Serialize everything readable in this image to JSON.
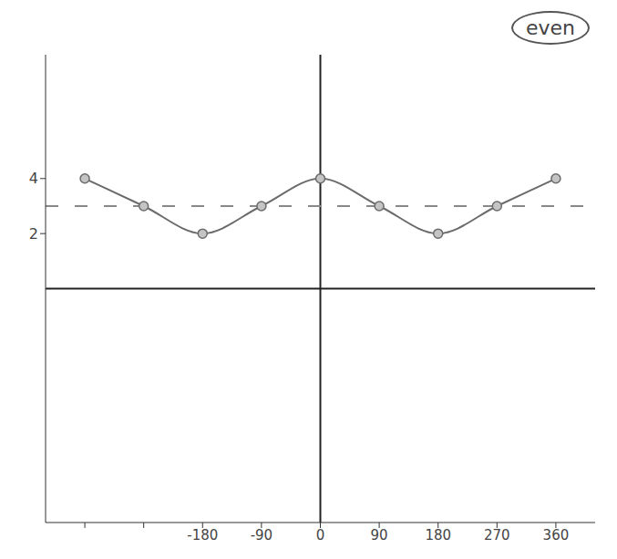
{
  "chart_data": {
    "type": "line",
    "annotation": "even",
    "x": [
      -360,
      -270,
      -180,
      -90,
      0,
      90,
      180,
      270,
      360
    ],
    "values": [
      4,
      3,
      2,
      3,
      4,
      3,
      2,
      3,
      4
    ],
    "color": "#6b6b6b",
    "marker": "circle",
    "line_style": "solid",
    "midline": 3,
    "xlim": [
      -420,
      420
    ],
    "ylim": [
      -8.5,
      8.5
    ],
    "xticks": [
      {
        "value": -360,
        "label": null
      },
      {
        "value": -270,
        "label": null
      },
      -180,
      -90,
      0,
      90,
      180,
      270,
      360
    ],
    "yticks": [
      2,
      4
    ]
  }
}
